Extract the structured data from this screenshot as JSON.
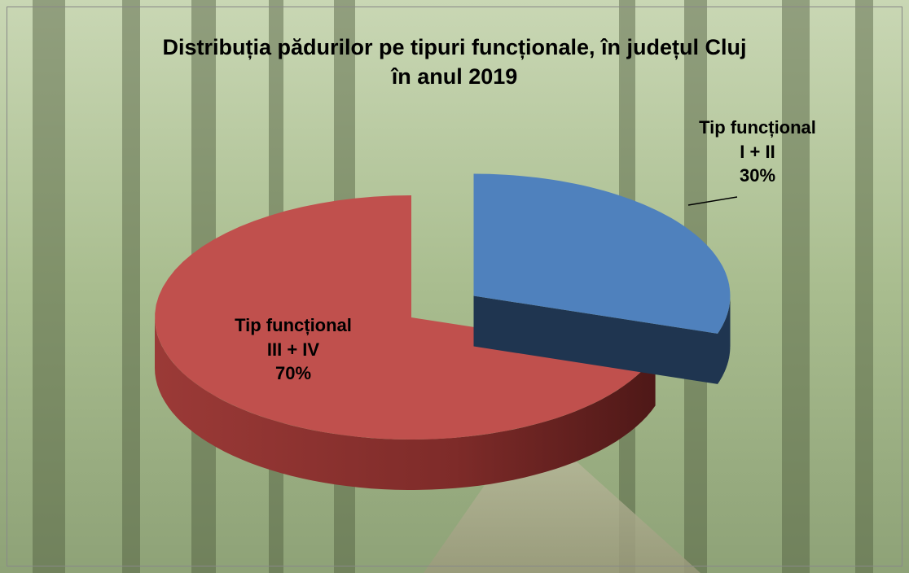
{
  "chart_data": {
    "type": "pie3d",
    "title": "Distribuția pădurilor pe tipuri funcționale, în județul Cluj\nîn anul 2019",
    "categories": [
      "Tip funcțional\nI + II",
      "Tip funcțional\nIII + IV"
    ],
    "values": [
      30,
      70
    ],
    "value_labels": [
      "30%",
      "70%"
    ],
    "colors": [
      "#4f81bd",
      "#c0504d"
    ]
  }
}
